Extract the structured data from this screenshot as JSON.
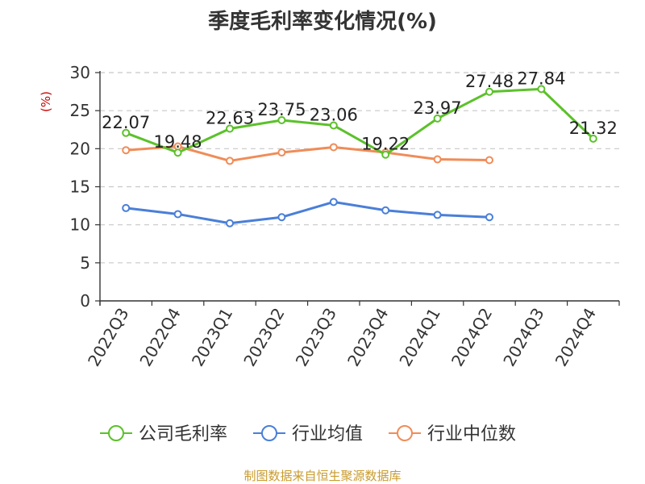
{
  "chart_data": {
    "type": "line",
    "title": "季度毛利率变化情况(%)",
    "ylabel": "(%)",
    "ylim": [
      0,
      30
    ],
    "yticks": [
      0,
      5,
      10,
      15,
      20,
      25,
      30
    ],
    "grid": true,
    "legend_position": "bottom",
    "categories": [
      "2022Q3",
      "2022Q4",
      "2023Q1",
      "2023Q2",
      "2023Q3",
      "2023Q4",
      "2024Q1",
      "2024Q2",
      "2024Q3",
      "2024Q4"
    ],
    "series": [
      {
        "name": "公司毛利率",
        "color": "#5cc12b",
        "values": [
          22.07,
          19.48,
          22.63,
          23.75,
          23.06,
          19.22,
          23.97,
          27.48,
          27.84,
          21.32
        ],
        "labels": [
          "22.07",
          "19.48",
          "22.63",
          "23.75",
          "23.06",
          "19.22",
          "23.97",
          "27.48",
          "27.84",
          "21.32"
        ]
      },
      {
        "name": "行业均值",
        "color": "#4a7fd8",
        "values": [
          12.2,
          11.4,
          10.2,
          11.0,
          13.0,
          11.9,
          11.3,
          11.0,
          null,
          null
        ]
      },
      {
        "name": "行业中位数",
        "color": "#f08c58",
        "values": [
          19.8,
          20.3,
          18.4,
          19.5,
          20.2,
          19.5,
          18.6,
          18.5,
          null,
          null
        ]
      }
    ]
  },
  "source": "制图数据来自恒生聚源数据库"
}
